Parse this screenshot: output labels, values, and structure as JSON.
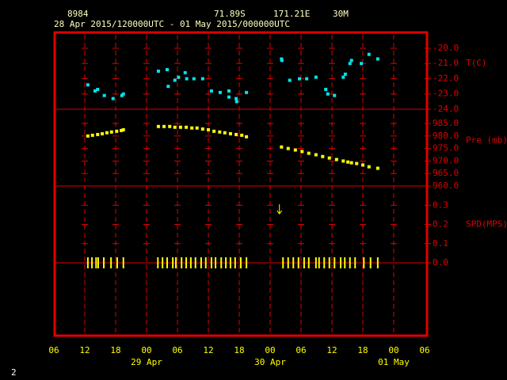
{
  "header": {
    "station": "8984",
    "lat": "71.89S",
    "lon": "171.21E",
    "elev": "30M",
    "period": "28 Apr 2015/120000UTC - 01 May 2015/000000UTC",
    "page": "2"
  },
  "x_axis": {
    "xlim": [
      0,
      72
    ],
    "xticks": [
      {
        "value": 0,
        "label": "06"
      },
      {
        "value": 6,
        "label": "12"
      },
      {
        "value": 12,
        "label": "18"
      },
      {
        "value": 18,
        "label": "00"
      },
      {
        "value": 24,
        "label": "06"
      },
      {
        "value": 30,
        "label": "12"
      },
      {
        "value": 36,
        "label": "18"
      },
      {
        "value": 42,
        "label": "00"
      },
      {
        "value": 48,
        "label": "06"
      },
      {
        "value": 54,
        "label": "12"
      },
      {
        "value": 60,
        "label": "18"
      },
      {
        "value": 66,
        "label": "00"
      },
      {
        "value": 72,
        "label": "06"
      }
    ],
    "dates": [
      {
        "value": 18,
        "label": "29 Apr"
      },
      {
        "value": 42,
        "label": "30 Apr"
      },
      {
        "value": 66,
        "label": "01 May"
      }
    ]
  },
  "chart_data": [
    {
      "type": "scatter",
      "y_label": "T(C)",
      "color": "#00e5ee",
      "ylim": [
        -24,
        -18.91
      ],
      "yticks": [
        {
          "value": -20,
          "label": "-20.0"
        },
        {
          "value": -21,
          "label": "-21.0"
        },
        {
          "value": -22,
          "label": "-22.0"
        },
        {
          "value": -23,
          "label": "-23.0"
        },
        {
          "value": -24,
          "label": "-24.0"
        }
      ],
      "x": [
        6.6,
        8.0,
        8.5,
        9.8,
        11.5,
        13.2,
        13.5,
        20.3,
        22.0,
        22.2,
        23.5,
        24.2,
        25.5,
        25.8,
        27.2,
        28.9,
        30.6,
        32.3,
        34.0,
        34.0,
        35.4,
        35.5,
        37.4,
        44.2,
        44.3,
        45.8,
        47.7,
        49.1,
        50.9,
        52.8,
        53.2,
        54.5,
        56.2,
        56.6,
        57.5,
        57.8,
        59.7,
        61.2,
        62.9
      ],
      "values": [
        -22.4,
        -22.8,
        -22.7,
        -23.1,
        -23.3,
        -23.1,
        -23.0,
        -21.5,
        -21.4,
        -22.5,
        -22.1,
        -21.9,
        -21.6,
        -22.0,
        -22.0,
        -22.0,
        -22.8,
        -22.9,
        -22.8,
        -23.2,
        -23.3,
        -23.5,
        -22.9,
        -20.7,
        -20.8,
        -22.1,
        -22.0,
        -22.0,
        -21.9,
        -22.7,
        -23.0,
        -23.1,
        -21.9,
        -21.7,
        -21.0,
        -20.8,
        -21.0,
        -20.4,
        -20.7
      ]
    },
    {
      "type": "scatter",
      "y_label": "Pre (mb)",
      "color": "#ffff00",
      "ylim": [
        960,
        990.7
      ],
      "yticks": [
        {
          "value": 985,
          "label": "985.0"
        },
        {
          "value": 980,
          "label": "980.0"
        },
        {
          "value": 975,
          "label": "975.0"
        },
        {
          "value": 970,
          "label": "970.0"
        },
        {
          "value": 965,
          "label": "965.0"
        },
        {
          "value": 960,
          "label": "960.0"
        }
      ],
      "x": [
        6.6,
        7.5,
        8.5,
        9.4,
        10.3,
        11.2,
        12.2,
        13.1,
        13.5,
        20.3,
        21.4,
        22.5,
        23.5,
        24.6,
        25.7,
        26.8,
        27.8,
        28.9,
        30.0,
        31.1,
        32.2,
        33.2,
        34.3,
        35.4,
        36.5,
        37.4,
        44.2,
        45.5,
        46.9,
        48.2,
        49.5,
        50.9,
        52.2,
        53.5,
        54.9,
        56.2,
        57.1,
        57.8,
        58.8,
        60.0,
        61.2,
        62.9
      ],
      "values": [
        980.0,
        980.3,
        980.6,
        980.9,
        981.3,
        981.6,
        981.9,
        982.2,
        982.5,
        983.8,
        983.8,
        983.8,
        983.5,
        983.5,
        983.5,
        983.2,
        983.2,
        982.8,
        982.5,
        981.9,
        981.6,
        981.3,
        980.9,
        980.6,
        980.3,
        979.7,
        975.6,
        975.0,
        974.4,
        973.8,
        973.1,
        972.5,
        971.8,
        971.2,
        970.6,
        970.0,
        969.6,
        969.3,
        969.0,
        968.4,
        967.7,
        967.1
      ]
    },
    {
      "type": "wind",
      "y_label": "SPD(MPS)",
      "color": "#ffff00",
      "ylim": [
        0,
        0.4
      ],
      "yticks": [
        {
          "value": 0.3,
          "label": "0.3"
        },
        {
          "value": 0.2,
          "label": "0.2"
        },
        {
          "value": 0.1,
          "label": "0.1"
        },
        {
          "value": 0,
          "label": "0.0"
        }
      ],
      "x": [
        6.6,
        7.4,
        8.2,
        8.6,
        9.7,
        11.1,
        12.3,
        13.5,
        20.2,
        21.1,
        22.0,
        23.1,
        23.7,
        24.8,
        25.7,
        26.6,
        27.5,
        28.6,
        29.5,
        30.6,
        31.4,
        32.5,
        33.4,
        34.3,
        35.2,
        36.3,
        37.4,
        44.5,
        45.5,
        46.5,
        47.5,
        48.6,
        49.5,
        50.9,
        51.5,
        52.5,
        53.5,
        54.5,
        55.7,
        56.5,
        57.5,
        58.5,
        60.2,
        61.5,
        62.9
      ],
      "values": [
        0,
        0,
        0,
        0,
        0,
        0,
        0,
        0,
        0,
        0,
        0,
        0,
        0,
        0,
        0,
        0,
        0,
        0,
        0,
        0,
        0,
        0,
        0,
        0,
        0,
        0,
        0,
        0,
        0,
        0,
        0,
        0,
        0,
        0,
        0,
        0,
        0,
        0,
        0,
        0,
        0,
        0,
        0,
        0,
        0
      ],
      "arrow": {
        "x": 43.8,
        "value": 0.28
      }
    }
  ]
}
